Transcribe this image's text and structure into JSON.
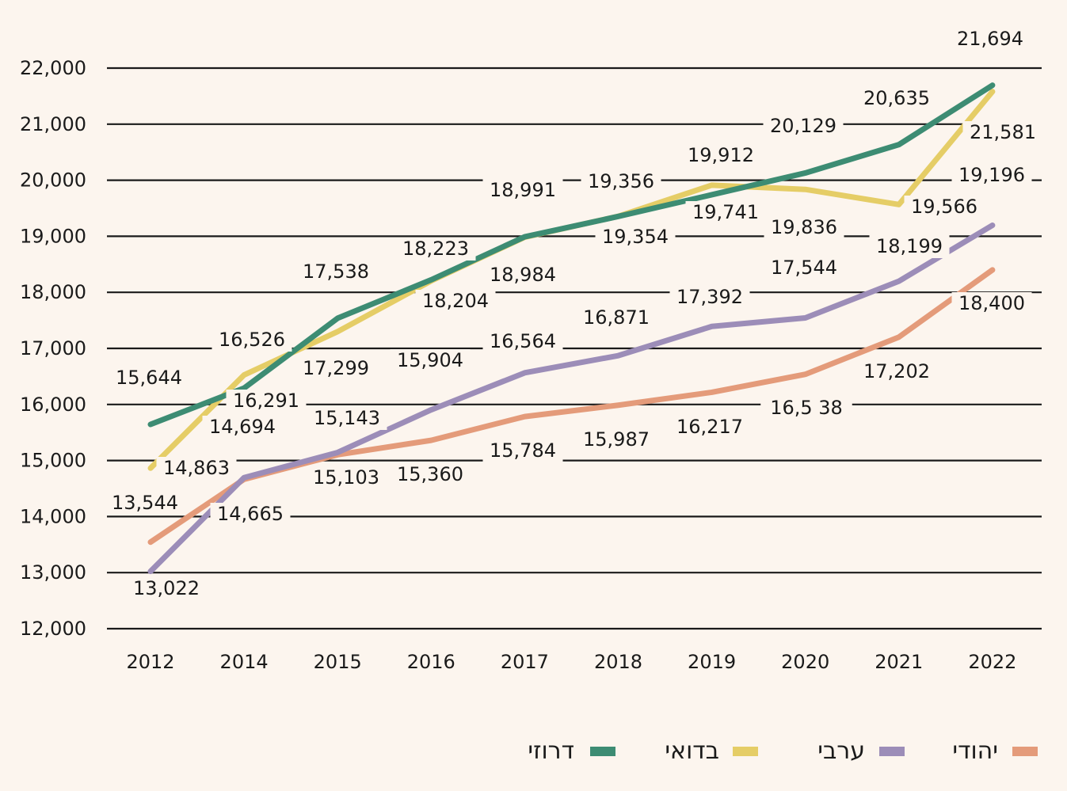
{
  "chart_data": {
    "type": "line",
    "categories": [
      "2012",
      "2014",
      "2015",
      "2016",
      "2017",
      "2018",
      "2019",
      "2020",
      "2021",
      "2022"
    ],
    "ylim": [
      12000,
      22000
    ],
    "yticks": [
      12000,
      13000,
      14000,
      15000,
      16000,
      17000,
      18000,
      19000,
      20000,
      21000,
      22000
    ],
    "ytick_labels": [
      "12,000",
      "13,000",
      "14,000",
      "15,000",
      "16,000",
      "17,000",
      "18,000",
      "19,000",
      "20,000",
      "21,000",
      "22,000"
    ],
    "grid": true,
    "legend_position": "bottom-right",
    "series": [
      {
        "name": "דרוזי",
        "color": "#3d8c73",
        "values": [
          15644,
          16291,
          17538,
          18223,
          18991,
          19354,
          19741,
          20129,
          20635,
          21694
        ],
        "labels": [
          "15,644",
          "16,291",
          "17,538",
          "18,223",
          "18,991",
          "19,354",
          "19,741",
          "20,129",
          "20,635",
          "21,694"
        ]
      },
      {
        "name": "בדואי",
        "color": "#e5cd66",
        "values": [
          14863,
          16526,
          17299,
          18204,
          18984,
          19356,
          19912,
          19836,
          19566,
          21581
        ],
        "labels": [
          "14,863",
          "16,526",
          "17,299",
          "18,204",
          "18,984",
          "19,356",
          "19,912",
          "19,836",
          "19,566",
          "21,581"
        ]
      },
      {
        "name": "ערבי",
        "color": "#9c8db8",
        "values": [
          13022,
          14694,
          15143,
          15904,
          16564,
          16871,
          17392,
          17544,
          18199,
          19196
        ],
        "labels": [
          "13,022",
          "14,694",
          "15,143",
          "15,904",
          "16,564",
          "16,871",
          "17,392",
          "17,544",
          "18,199",
          "19,196"
        ]
      },
      {
        "name": "יהודי",
        "color": "#e49b7a",
        "values": [
          13544,
          14665,
          15103,
          15360,
          15784,
          15987,
          16217,
          16538,
          17202,
          18400
        ],
        "labels": [
          "13,544",
          "14,665",
          "15,103",
          "15,360",
          "15,784",
          "15,987",
          "16,217",
          "16,5 38",
          "17,202",
          "18,400"
        ]
      }
    ]
  }
}
